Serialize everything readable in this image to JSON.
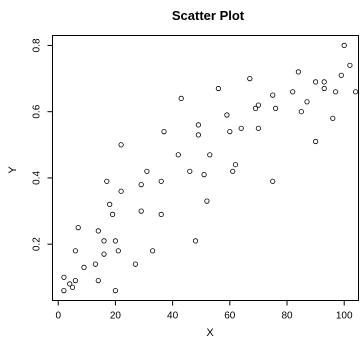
{
  "chart_data": {
    "type": "scatter",
    "title": "Scatter Plot",
    "xlabel": "X",
    "ylabel": "Y",
    "xlim": [
      -2,
      105
    ],
    "ylim": [
      0.03,
      0.83
    ],
    "x_ticks": [
      0,
      20,
      40,
      60,
      80,
      100
    ],
    "y_ticks": [
      0.2,
      0.4,
      0.6,
      0.8
    ],
    "x_tick_labels": [
      "0",
      "20",
      "40",
      "60",
      "80",
      "100"
    ],
    "y_tick_labels": [
      "0.2",
      "0.4",
      "0.6",
      "0.8"
    ],
    "grid": false,
    "legend": "none",
    "point_color": "#000000",
    "points": [
      [
        2,
        0.06
      ],
      [
        2,
        0.1
      ],
      [
        4,
        0.08
      ],
      [
        5,
        0.07
      ],
      [
        6,
        0.09
      ],
      [
        6,
        0.18
      ],
      [
        7,
        0.25
      ],
      [
        9,
        0.13
      ],
      [
        13,
        0.14
      ],
      [
        14,
        0.09
      ],
      [
        14,
        0.24
      ],
      [
        16,
        0.21
      ],
      [
        16,
        0.17
      ],
      [
        17,
        0.39
      ],
      [
        18,
        0.32
      ],
      [
        19,
        0.29
      ],
      [
        20,
        0.21
      ],
      [
        20,
        0.06
      ],
      [
        21,
        0.18
      ],
      [
        22,
        0.36
      ],
      [
        22,
        0.5
      ],
      [
        27,
        0.14
      ],
      [
        29,
        0.38
      ],
      [
        29,
        0.3
      ],
      [
        31,
        0.42
      ],
      [
        33,
        0.18
      ],
      [
        36,
        0.39
      ],
      [
        36,
        0.29
      ],
      [
        37,
        0.54
      ],
      [
        42,
        0.47
      ],
      [
        43,
        0.64
      ],
      [
        46,
        0.42
      ],
      [
        48,
        0.21
      ],
      [
        49,
        0.53
      ],
      [
        49,
        0.56
      ],
      [
        51,
        0.41
      ],
      [
        52,
        0.33
      ],
      [
        53,
        0.47
      ],
      [
        56,
        0.67
      ],
      [
        59,
        0.59
      ],
      [
        60,
        0.54
      ],
      [
        61,
        0.42
      ],
      [
        62,
        0.44
      ],
      [
        64,
        0.55
      ],
      [
        67,
        0.7
      ],
      [
        69,
        0.61
      ],
      [
        70,
        0.62
      ],
      [
        70,
        0.55
      ],
      [
        75,
        0.65
      ],
      [
        75,
        0.39
      ],
      [
        76,
        0.61
      ],
      [
        82,
        0.66
      ],
      [
        84,
        0.72
      ],
      [
        85,
        0.6
      ],
      [
        87,
        0.63
      ],
      [
        90,
        0.51
      ],
      [
        90,
        0.69
      ],
      [
        93,
        0.69
      ],
      [
        93,
        0.67
      ],
      [
        96,
        0.58
      ],
      [
        97,
        0.66
      ],
      [
        99,
        0.71
      ],
      [
        100,
        0.8
      ],
      [
        102,
        0.74
      ],
      [
        104,
        0.66
      ]
    ]
  }
}
